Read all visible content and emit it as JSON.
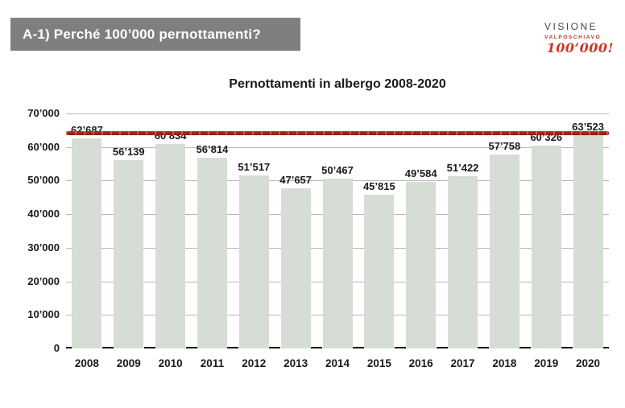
{
  "header": {
    "title": "A-1) Perché 100’000 pernottamenti?"
  },
  "logo": {
    "line1": "VISIONE",
    "line2": "VALPOSCHIAVO",
    "line3": "100’000!",
    "accent_color": "#c9311f",
    "text_color": "#474747"
  },
  "chart_data": {
    "type": "bar",
    "title": "Pernottamenti in albergo 2008-2020",
    "categories": [
      "2008",
      "2009",
      "2010",
      "2011",
      "2012",
      "2013",
      "2014",
      "2015",
      "2016",
      "2017",
      "2018",
      "2019",
      "2020"
    ],
    "values": [
      62687,
      56139,
      60834,
      56814,
      51517,
      47657,
      50467,
      45815,
      49584,
      51422,
      57758,
      60326,
      63523
    ],
    "value_labels": [
      "62’687",
      "56’139",
      "60’834",
      "56’814",
      "51’517",
      "47’657",
      "50’467",
      "45’815",
      "49’584",
      "51’422",
      "57’758",
      "60’326",
      "63’523"
    ],
    "xlabel": "",
    "ylabel": "",
    "ylim": [
      0,
      70000
    ],
    "y_tick_step": 10000,
    "y_tick_labels": [
      "0",
      "10’000",
      "20’000",
      "30’000",
      "40’000",
      "50’000",
      "60’000",
      "70’000"
    ],
    "grid": true,
    "legend": "none",
    "bar_color": "#d6ddd4",
    "gridline_color": "#b7b7b7",
    "label_color": "#1b1b1b",
    "reference_line": {
      "approx_value": 64300,
      "color": "#a8241a",
      "style": "hand-drawn horizontal line spanning full plot width"
    }
  }
}
